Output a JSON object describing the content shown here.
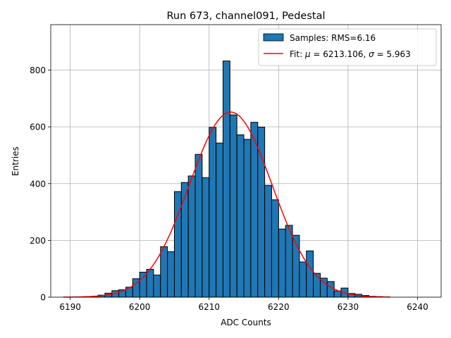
{
  "chart_data": {
    "type": "bar",
    "title": "Run 673, channel091, Pedestal",
    "xlabel": "ADC Counts",
    "ylabel": "Entries",
    "xlim": [
      6187.2,
      6243.4
    ],
    "ylim": [
      0,
      960
    ],
    "xticks": [
      6190,
      6200,
      6210,
      6220,
      6230,
      6240
    ],
    "yticks": [
      0,
      200,
      400,
      600,
      800
    ],
    "grid": true,
    "legend_position": "top-right",
    "bin_width": 1,
    "bin_start": 6189,
    "values": [
      0,
      0,
      1,
      2,
      3,
      7,
      14,
      23,
      26,
      35,
      65,
      88,
      98,
      78,
      178,
      160,
      372,
      404,
      427,
      503,
      421,
      598,
      543,
      832,
      642,
      572,
      556,
      616,
      599,
      394,
      343,
      240,
      253,
      218,
      124,
      163,
      84,
      67,
      55,
      22,
      32,
      13,
      10,
      6,
      3,
      2,
      1
    ],
    "series": [
      {
        "name": "Samples: RMS=6.16",
        "kind": "histogram",
        "color": "#1f77b4",
        "edge_color": "#000000"
      },
      {
        "name": "Fit: μ = 6213.106, σ = 5.963",
        "kind": "line",
        "color": "#ff0000",
        "mu": 6213.106,
        "sigma": 5.963,
        "amplitude": 652,
        "x_range": [
          6189,
          6236
        ]
      }
    ]
  }
}
